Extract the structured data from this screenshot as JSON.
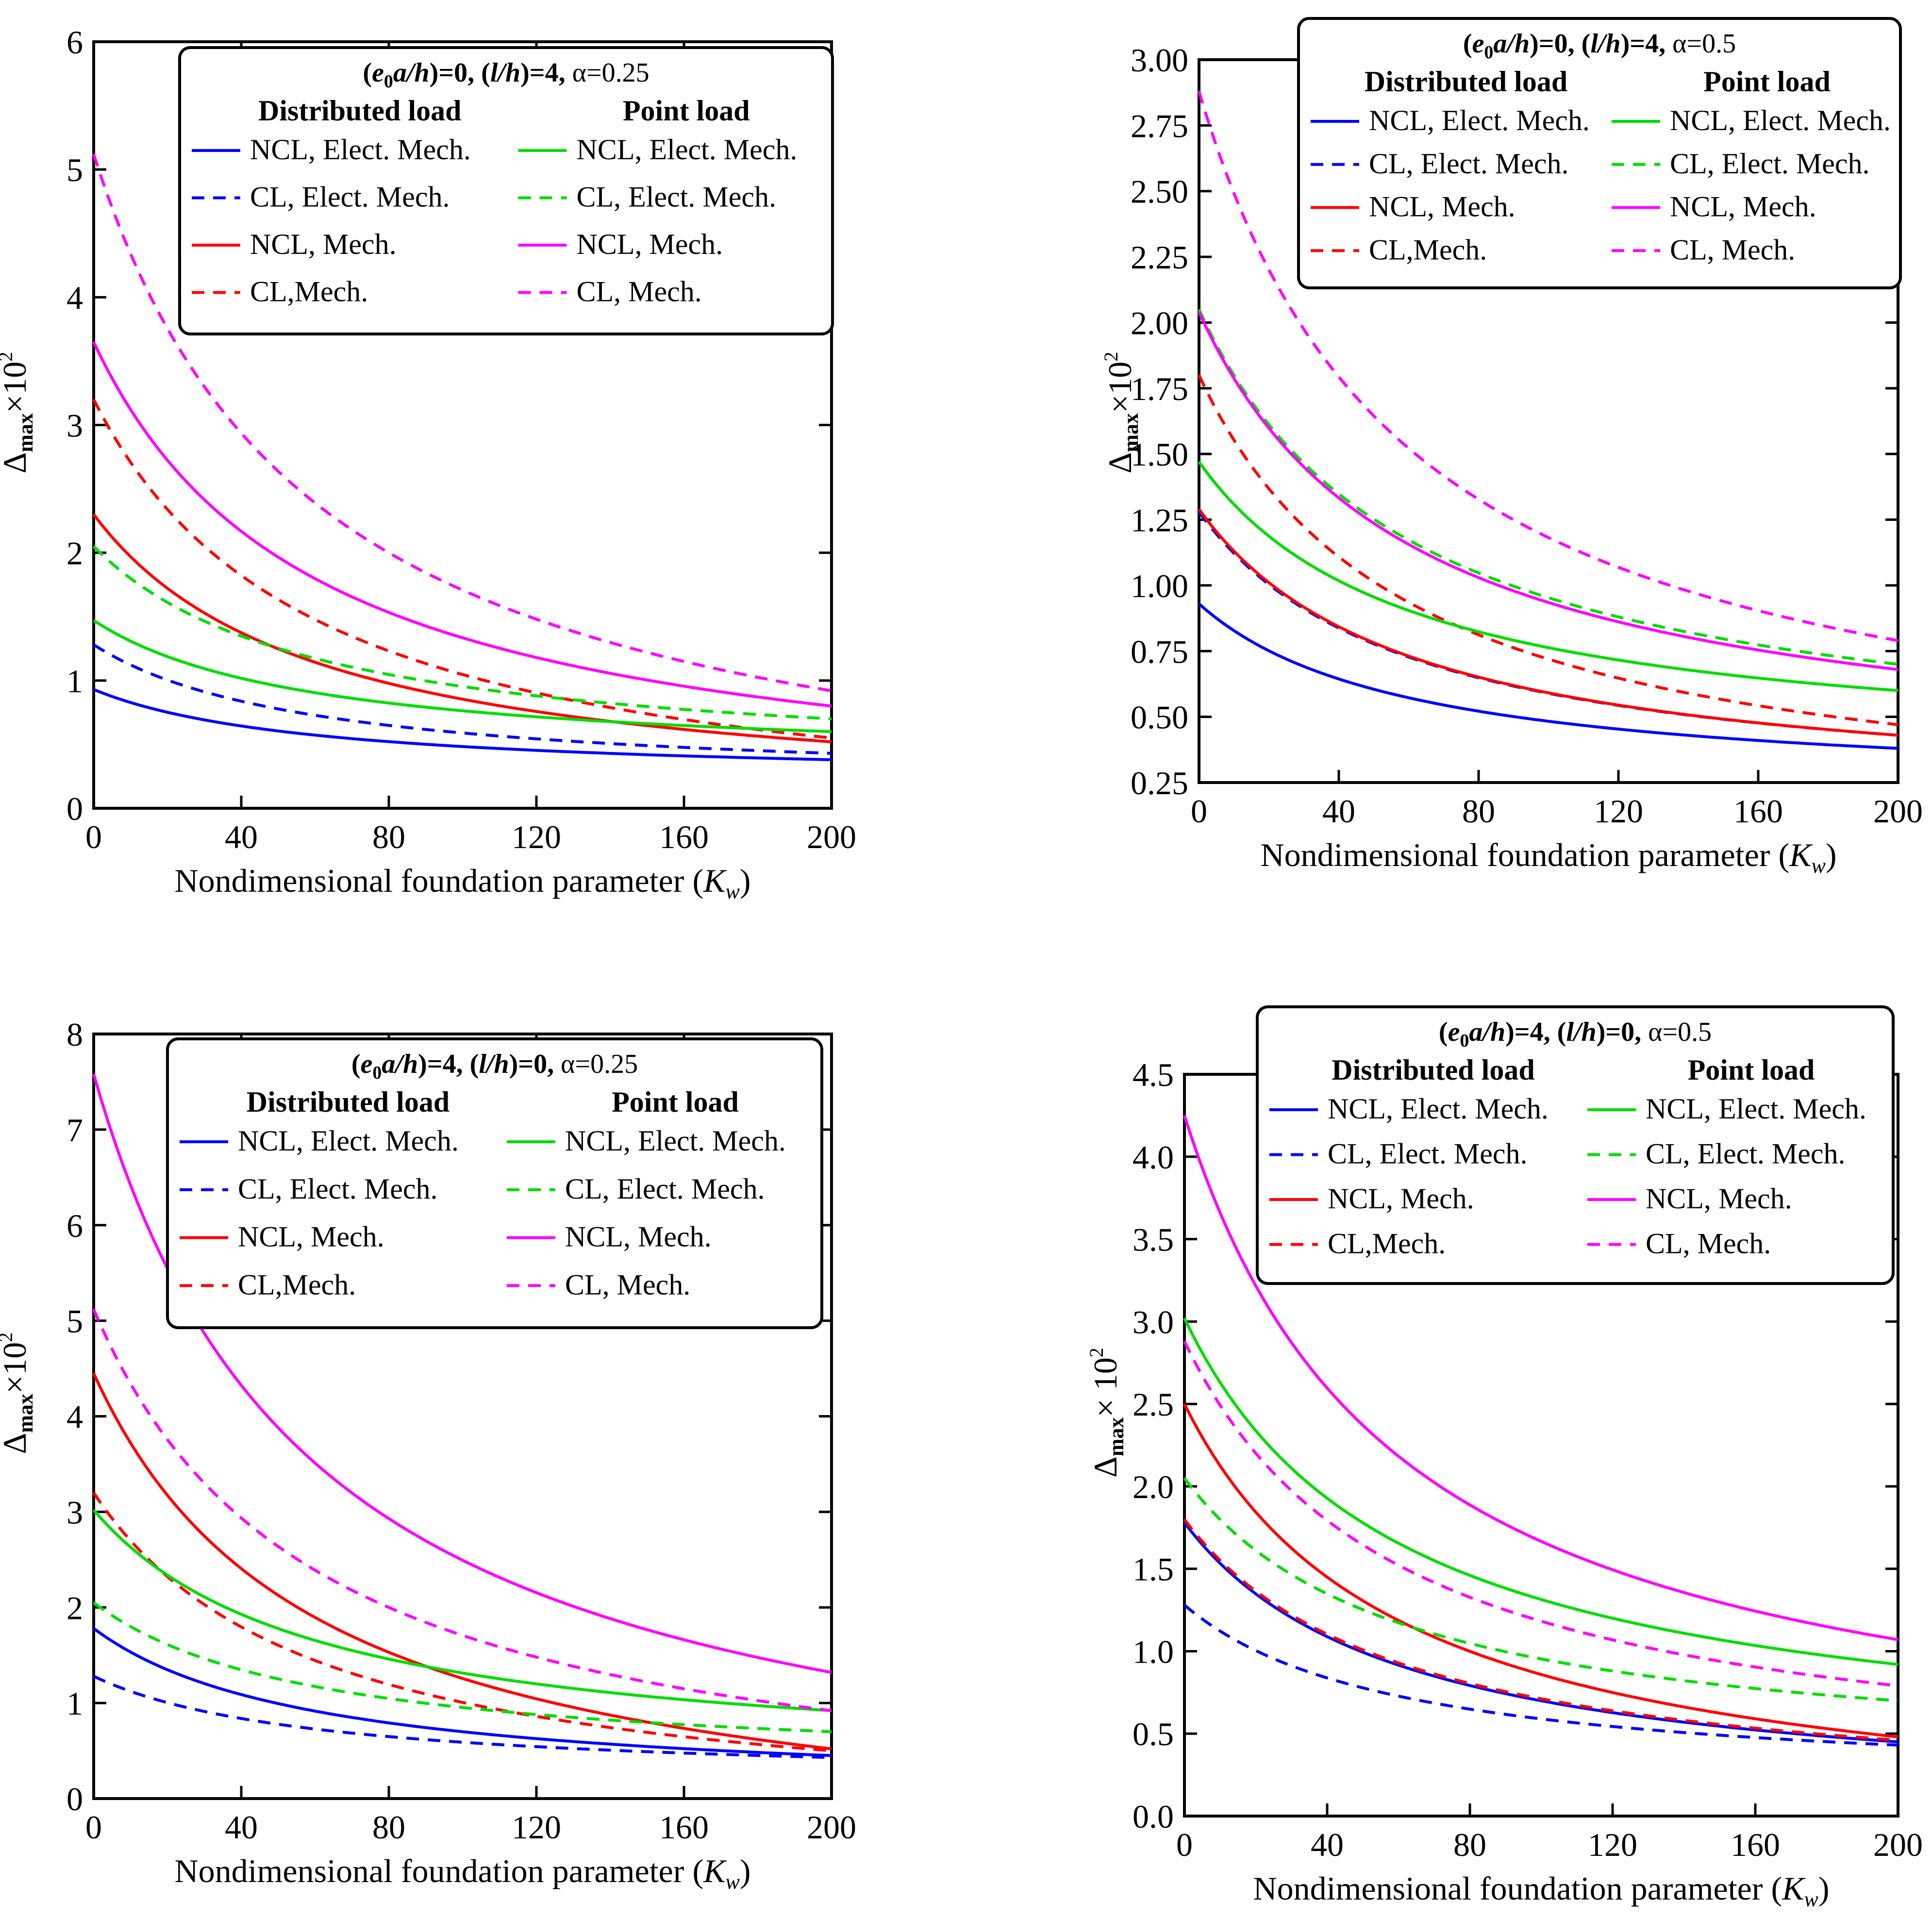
{
  "chart_data": [
    {
      "type": "line",
      "panel": "top-left",
      "title": "(e0a/h)=0, (l/h)=4, α=0.25",
      "title_parts": {
        "e0a_h": "0",
        "l_h": "4",
        "alpha": "0.25"
      },
      "xlabel": "Nondimensional foundation parameter (Kw)",
      "ylabel": "Δmax×10²",
      "xlim": [
        0,
        200
      ],
      "ylim": [
        0,
        6
      ],
      "xticks": [
        "0",
        "40",
        "80",
        "120",
        "160",
        "200"
      ],
      "yticks": [
        "0",
        "1",
        "2",
        "3",
        "4",
        "5",
        "6"
      ],
      "legend_headers": [
        "Distributed load",
        "Point load"
      ],
      "legend_placement": "top-right",
      "series": [
        {
          "name": "NCL, Elect. Mech.",
          "group": "Distributed load",
          "color": "#0000ff",
          "dash": "solid",
          "y0": 0.93,
          "y200": 0.38
        },
        {
          "name": "CL, Elect. Mech.",
          "group": "Distributed load",
          "color": "#0000ff",
          "dash": "dashed",
          "y0": 1.28,
          "y200": 0.43
        },
        {
          "name": "NCL, Mech.",
          "group": "Distributed load",
          "color": "#ff0000",
          "dash": "solid",
          "y0": 2.3,
          "y200": 0.52
        },
        {
          "name": "CL,Mech.",
          "group": "Distributed load",
          "color": "#ff0000",
          "dash": "dashed",
          "y0": 3.2,
          "y200": 0.55
        },
        {
          "name": "NCL, Elect. Mech.",
          "group": "Point load",
          "color": "#00dd00",
          "dash": "solid",
          "y0": 1.47,
          "y200": 0.6
        },
        {
          "name": "CL, Elect. Mech.",
          "group": "Point load",
          "color": "#00dd00",
          "dash": "dashed",
          "y0": 2.05,
          "y200": 0.7
        },
        {
          "name": "NCL, Mech.",
          "group": "Point load",
          "color": "#ff00ff",
          "dash": "solid",
          "y0": 3.65,
          "y200": 0.8
        },
        {
          "name": "CL, Mech.",
          "group": "Point load",
          "color": "#ff00ff",
          "dash": "dashed",
          "y0": 5.12,
          "y200": 0.92
        }
      ]
    },
    {
      "type": "line",
      "panel": "top-right",
      "title": "(e0a/h)=0, (l/h)=4, α=0.5",
      "title_parts": {
        "e0a_h": "0",
        "l_h": "4",
        "alpha": "0.5"
      },
      "xlabel": "Nondimensional foundation parameter (Kw)",
      "ylabel": "Δmax×10²",
      "xlim": [
        0,
        200
      ],
      "ylim": [
        0.25,
        3.0
      ],
      "xticks": [
        "0",
        "40",
        "80",
        "120",
        "160",
        "200"
      ],
      "yticks": [
        "0.25",
        "0.50",
        "0.75",
        "1.00",
        "1.25",
        "1.50",
        "1.75",
        "2.00",
        "2.25",
        "2.50",
        "2.75",
        "3.00"
      ],
      "legend_headers": [
        "Distributed load",
        "Point load"
      ],
      "legend_placement": "top-right",
      "series": [
        {
          "name": "NCL, Elect. Mech.",
          "group": "Distributed load",
          "color": "#0000ff",
          "dash": "solid",
          "y0": 0.93,
          "y200": 0.38
        },
        {
          "name": "CL, Elect. Mech.",
          "group": "Distributed load",
          "color": "#0000ff",
          "dash": "dashed",
          "y0": 1.28,
          "y200": 0.43
        },
        {
          "name": "NCL, Mech.",
          "group": "Distributed load",
          "color": "#ff0000",
          "dash": "solid",
          "y0": 1.29,
          "y200": 0.43
        },
        {
          "name": "CL,Mech.",
          "group": "Distributed load",
          "color": "#ff0000",
          "dash": "dashed",
          "y0": 1.8,
          "y200": 0.47
        },
        {
          "name": "NCL, Elect. Mech.",
          "group": "Point load",
          "color": "#00dd00",
          "dash": "solid",
          "y0": 1.47,
          "y200": 0.6
        },
        {
          "name": "CL, Elect. Mech.",
          "group": "Point load",
          "color": "#00dd00",
          "dash": "dashed",
          "y0": 2.05,
          "y200": 0.7
        },
        {
          "name": "NCL, Mech.",
          "group": "Point load",
          "color": "#ff00ff",
          "dash": "solid",
          "y0": 2.04,
          "y200": 0.68
        },
        {
          "name": "CL, Mech.",
          "group": "Point load",
          "color": "#ff00ff",
          "dash": "dashed",
          "y0": 2.88,
          "y200": 0.79
        }
      ]
    },
    {
      "type": "line",
      "panel": "bottom-left",
      "title": "(e0a/h)=4, (l/h)=0, α=0.25",
      "title_parts": {
        "e0a_h": "4",
        "l_h": "0",
        "alpha": "0.25"
      },
      "xlabel": "Nondimensional foundation parameter (Kw)",
      "ylabel": "Δmax×10²",
      "xlim": [
        0,
        200
      ],
      "ylim": [
        0,
        8
      ],
      "xticks": [
        "0",
        "40",
        "80",
        "120",
        "160",
        "200"
      ],
      "yticks": [
        "0",
        "1",
        "2",
        "3",
        "4",
        "5",
        "6",
        "7",
        "8"
      ],
      "legend_headers": [
        "Distributed load",
        "Point load"
      ],
      "legend_placement": "top-right",
      "series": [
        {
          "name": "NCL, Elect. Mech.",
          "group": "Distributed load",
          "color": "#0000ff",
          "dash": "solid",
          "y0": 1.78,
          "y200": 0.45
        },
        {
          "name": "CL, Elect. Mech.",
          "group": "Distributed load",
          "color": "#0000ff",
          "dash": "dashed",
          "y0": 1.28,
          "y200": 0.43
        },
        {
          "name": "NCL, Mech.",
          "group": "Distributed load",
          "color": "#ff0000",
          "dash": "solid",
          "y0": 4.45,
          "y200": 0.52
        },
        {
          "name": "CL,Mech.",
          "group": "Distributed load",
          "color": "#ff0000",
          "dash": "dashed",
          "y0": 3.2,
          "y200": 0.5
        },
        {
          "name": "NCL, Elect. Mech.",
          "group": "Point load",
          "color": "#00dd00",
          "dash": "solid",
          "y0": 3.02,
          "y200": 0.92
        },
        {
          "name": "CL, Elect. Mech.",
          "group": "Point load",
          "color": "#00dd00",
          "dash": "dashed",
          "y0": 2.05,
          "y200": 0.7
        },
        {
          "name": "NCL, Mech.",
          "group": "Point load",
          "color": "#ff00ff",
          "dash": "solid",
          "y0": 7.58,
          "y200": 1.32
        },
        {
          "name": "CL, Mech.",
          "group": "Point load",
          "color": "#ff00ff",
          "dash": "dashed",
          "y0": 5.12,
          "y200": 0.92
        }
      ]
    },
    {
      "type": "line",
      "panel": "bottom-right",
      "title": "(e0a/h)=4, (l/h)=0, α=0.5",
      "title_parts": {
        "e0a_h": "4",
        "l_h": "0",
        "alpha": "0.5"
      },
      "xlabel": "Nondimensional foundation parameter (Kw)",
      "ylabel": "Δmax× 10²",
      "xlim": [
        0,
        200
      ],
      "ylim": [
        0,
        4.5
      ],
      "xticks": [
        "0",
        "40",
        "80",
        "120",
        "160",
        "200"
      ],
      "yticks": [
        "0.0",
        "0.5",
        "1.0",
        "1.5",
        "2.0",
        "2.5",
        "3.0",
        "3.5",
        "4.0",
        "4.5"
      ],
      "legend_headers": [
        "Distributed load",
        "Point load"
      ],
      "legend_placement": "top-right",
      "series": [
        {
          "name": "NCL, Elect. Mech.",
          "group": "Distributed load",
          "color": "#0000ff",
          "dash": "solid",
          "y0": 1.78,
          "y200": 0.45
        },
        {
          "name": "CL, Elect. Mech.",
          "group": "Distributed load",
          "color": "#0000ff",
          "dash": "dashed",
          "y0": 1.28,
          "y200": 0.43
        },
        {
          "name": "NCL, Mech.",
          "group": "Distributed load",
          "color": "#ff0000",
          "dash": "solid",
          "y0": 2.5,
          "y200": 0.48
        },
        {
          "name": "CL,Mech.",
          "group": "Distributed load",
          "color": "#ff0000",
          "dash": "dashed",
          "y0": 1.8,
          "y200": 0.46
        },
        {
          "name": "NCL, Elect. Mech.",
          "group": "Point load",
          "color": "#00dd00",
          "dash": "solid",
          "y0": 3.02,
          "y200": 0.92
        },
        {
          "name": "CL, Elect. Mech.",
          "group": "Point load",
          "color": "#00dd00",
          "dash": "dashed",
          "y0": 2.05,
          "y200": 0.7
        },
        {
          "name": "NCL, Mech.",
          "group": "Point load",
          "color": "#ff00ff",
          "dash": "solid",
          "y0": 4.25,
          "y200": 1.07
        },
        {
          "name": "CL, Mech.",
          "group": "Point load",
          "color": "#ff00ff",
          "dash": "dashed",
          "y0": 2.88,
          "y200": 0.79
        }
      ]
    }
  ]
}
